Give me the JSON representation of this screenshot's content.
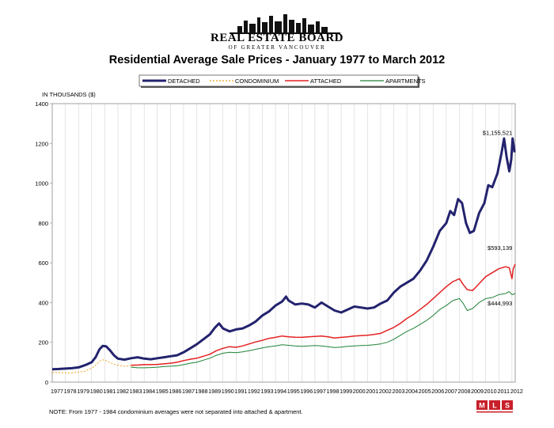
{
  "header": {
    "logo_title": "REAL ESTATE BOARD",
    "logo_subtitle": "OF GREATER VANCOUVER",
    "title": "Residential Average Sale Prices  -  January 1977 to March 2012"
  },
  "footer": {
    "note": "NOTE:  From 1977 - 1984 condominium averages were not separated into attached & apartment.",
    "badge_icon": "mls-logo-icon"
  },
  "chart_data": {
    "type": "line",
    "ylabel": "IN THOUSANDS ($)",
    "ylim": [
      0,
      1400
    ],
    "yticks": [
      0,
      200,
      400,
      600,
      800,
      1000,
      1200,
      1400
    ],
    "xlim": [
      1977,
      2012.25
    ],
    "xticks": [
      "1977",
      "1978",
      "1979",
      "1980",
      "1981",
      "1982",
      "1983",
      "1984",
      "1985",
      "1986",
      "1987",
      "1988",
      "1989",
      "1990",
      "1991",
      "1992",
      "1993",
      "1994",
      "1995",
      "1996",
      "1997",
      "1998",
      "1999",
      "2000",
      "2001",
      "2002",
      "2003",
      "2004",
      "2005",
      "2006",
      "2007",
      "2008",
      "2009",
      "2010",
      "2011",
      "2012"
    ],
    "grid": "vertical",
    "legend": "top",
    "series": [
      {
        "name": "DETACHED",
        "color": "#23236e",
        "width": 3,
        "dash": "",
        "points": [
          [
            1977,
            65
          ],
          [
            1977.5,
            66
          ],
          [
            1978,
            68
          ],
          [
            1978.5,
            70
          ],
          [
            1979,
            74
          ],
          [
            1979.5,
            85
          ],
          [
            1980,
            100
          ],
          [
            1980.3,
            125
          ],
          [
            1980.6,
            165
          ],
          [
            1980.85,
            182
          ],
          [
            1981.1,
            180
          ],
          [
            1981.4,
            160
          ],
          [
            1981.7,
            135
          ],
          [
            1982,
            118
          ],
          [
            1982.5,
            113
          ],
          [
            1983,
            120
          ],
          [
            1983.5,
            125
          ],
          [
            1984,
            118
          ],
          [
            1984.5,
            115
          ],
          [
            1985,
            120
          ],
          [
            1985.5,
            125
          ],
          [
            1986,
            130
          ],
          [
            1986.5,
            135
          ],
          [
            1987,
            150
          ],
          [
            1987.5,
            170
          ],
          [
            1988,
            190
          ],
          [
            1988.5,
            215
          ],
          [
            1989,
            240
          ],
          [
            1989.4,
            275
          ],
          [
            1989.7,
            295
          ],
          [
            1990,
            270
          ],
          [
            1990.5,
            255
          ],
          [
            1991,
            265
          ],
          [
            1991.5,
            270
          ],
          [
            1992,
            285
          ],
          [
            1992.5,
            305
          ],
          [
            1993,
            335
          ],
          [
            1993.5,
            355
          ],
          [
            1994,
            385
          ],
          [
            1994.5,
            405
          ],
          [
            1994.8,
            430
          ],
          [
            1995,
            410
          ],
          [
            1995.5,
            390
          ],
          [
            1996,
            395
          ],
          [
            1996.5,
            390
          ],
          [
            1997,
            375
          ],
          [
            1997.5,
            400
          ],
          [
            1998,
            380
          ],
          [
            1998.5,
            360
          ],
          [
            1999,
            350
          ],
          [
            1999.5,
            365
          ],
          [
            2000,
            380
          ],
          [
            2000.5,
            375
          ],
          [
            2001,
            370
          ],
          [
            2001.5,
            375
          ],
          [
            2002,
            395
          ],
          [
            2002.5,
            410
          ],
          [
            2003,
            450
          ],
          [
            2003.5,
            480
          ],
          [
            2004,
            500
          ],
          [
            2004.5,
            520
          ],
          [
            2005,
            560
          ],
          [
            2005.5,
            610
          ],
          [
            2006,
            680
          ],
          [
            2006.5,
            760
          ],
          [
            2007,
            800
          ],
          [
            2007.3,
            860
          ],
          [
            2007.6,
            840
          ],
          [
            2007.9,
            920
          ],
          [
            2008.2,
            900
          ],
          [
            2008.5,
            800
          ],
          [
            2008.8,
            750
          ],
          [
            2009.1,
            760
          ],
          [
            2009.5,
            850
          ],
          [
            2009.9,
            900
          ],
          [
            2010.2,
            990
          ],
          [
            2010.5,
            980
          ],
          [
            2010.9,
            1050
          ],
          [
            2011.2,
            1150
          ],
          [
            2011.4,
            1225
          ],
          [
            2011.6,
            1130
          ],
          [
            2011.8,
            1060
          ],
          [
            2011.95,
            1120
          ],
          [
            2012.05,
            1225
          ],
          [
            2012.2,
            1155
          ]
        ]
      },
      {
        "name": "CONDOMINIUM",
        "color": "#f0a21e",
        "width": 1,
        "dash": "2,2",
        "points": [
          [
            1977,
            48
          ],
          [
            1977.5,
            48
          ],
          [
            1978,
            47
          ],
          [
            1978.5,
            47
          ],
          [
            1979,
            50
          ],
          [
            1979.5,
            55
          ],
          [
            1980,
            70
          ],
          [
            1980.3,
            85
          ],
          [
            1980.6,
            105
          ],
          [
            1980.85,
            112
          ],
          [
            1981.1,
            108
          ],
          [
            1981.4,
            98
          ],
          [
            1981.7,
            90
          ],
          [
            1982,
            85
          ],
          [
            1982.5,
            80
          ],
          [
            1983,
            82
          ],
          [
            1983.5,
            85
          ],
          [
            1984,
            88
          ]
        ]
      },
      {
        "name": "ATTACHED",
        "color": "#e32222",
        "width": 1.5,
        "dash": "",
        "points": [
          [
            1983,
            85
          ],
          [
            1983.5,
            86
          ],
          [
            1984,
            88
          ],
          [
            1984.5,
            88
          ],
          [
            1985,
            89
          ],
          [
            1985.5,
            92
          ],
          [
            1986,
            95
          ],
          [
            1986.5,
            100
          ],
          [
            1987,
            108
          ],
          [
            1987.5,
            115
          ],
          [
            1988,
            120
          ],
          [
            1988.5,
            130
          ],
          [
            1989,
            140
          ],
          [
            1989.5,
            158
          ],
          [
            1990,
            170
          ],
          [
            1990.5,
            178
          ],
          [
            1991,
            175
          ],
          [
            1991.5,
            182
          ],
          [
            1992,
            192
          ],
          [
            1992.5,
            202
          ],
          [
            1993,
            210
          ],
          [
            1993.5,
            220
          ],
          [
            1994,
            225
          ],
          [
            1994.5,
            232
          ],
          [
            1995,
            228
          ],
          [
            1995.5,
            226
          ],
          [
            1996,
            225
          ],
          [
            1996.5,
            228
          ],
          [
            1997,
            230
          ],
          [
            1997.5,
            232
          ],
          [
            1998,
            228
          ],
          [
            1998.5,
            222
          ],
          [
            1999,
            225
          ],
          [
            1999.5,
            228
          ],
          [
            2000,
            232
          ],
          [
            2000.5,
            234
          ],
          [
            2001,
            236
          ],
          [
            2001.5,
            240
          ],
          [
            2002,
            245
          ],
          [
            2002.5,
            260
          ],
          [
            2003,
            275
          ],
          [
            2003.5,
            295
          ],
          [
            2004,
            320
          ],
          [
            2004.5,
            340
          ],
          [
            2005,
            365
          ],
          [
            2005.5,
            390
          ],
          [
            2006,
            420
          ],
          [
            2006.5,
            450
          ],
          [
            2007,
            480
          ],
          [
            2007.5,
            505
          ],
          [
            2008,
            520
          ],
          [
            2008.3,
            490
          ],
          [
            2008.6,
            465
          ],
          [
            2009,
            460
          ],
          [
            2009.5,
            495
          ],
          [
            2010,
            530
          ],
          [
            2010.5,
            550
          ],
          [
            2011,
            570
          ],
          [
            2011.5,
            580
          ],
          [
            2011.8,
            575
          ],
          [
            2012,
            520
          ],
          [
            2012.1,
            570
          ],
          [
            2012.25,
            593
          ]
        ]
      },
      {
        "name": "APARTMENTS",
        "color": "#1e8236",
        "width": 1,
        "dash": "",
        "points": [
          [
            1983,
            75
          ],
          [
            1983.5,
            72
          ],
          [
            1984,
            72
          ],
          [
            1984.5,
            73
          ],
          [
            1985,
            75
          ],
          [
            1985.5,
            78
          ],
          [
            1986,
            80
          ],
          [
            1986.5,
            82
          ],
          [
            1987,
            88
          ],
          [
            1987.5,
            95
          ],
          [
            1988,
            100
          ],
          [
            1988.5,
            110
          ],
          [
            1989,
            120
          ],
          [
            1989.5,
            135
          ],
          [
            1990,
            145
          ],
          [
            1990.5,
            150
          ],
          [
            1991,
            148
          ],
          [
            1991.5,
            152
          ],
          [
            1992,
            158
          ],
          [
            1992.5,
            165
          ],
          [
            1993,
            172
          ],
          [
            1993.5,
            178
          ],
          [
            1994,
            182
          ],
          [
            1994.5,
            188
          ],
          [
            1995,
            185
          ],
          [
            1995.5,
            182
          ],
          [
            1996,
            180
          ],
          [
            1996.5,
            182
          ],
          [
            1997,
            184
          ],
          [
            1997.5,
            182
          ],
          [
            1998,
            178
          ],
          [
            1998.5,
            174
          ],
          [
            1999,
            176
          ],
          [
            1999.5,
            180
          ],
          [
            2000,
            182
          ],
          [
            2000.5,
            184
          ],
          [
            2001,
            185
          ],
          [
            2001.5,
            188
          ],
          [
            2002,
            192
          ],
          [
            2002.5,
            200
          ],
          [
            2003,
            215
          ],
          [
            2003.5,
            235
          ],
          [
            2004,
            255
          ],
          [
            2004.5,
            270
          ],
          [
            2005,
            290
          ],
          [
            2005.5,
            310
          ],
          [
            2006,
            335
          ],
          [
            2006.5,
            365
          ],
          [
            2007,
            385
          ],
          [
            2007.5,
            410
          ],
          [
            2008,
            420
          ],
          [
            2008.3,
            395
          ],
          [
            2008.6,
            360
          ],
          [
            2009,
            370
          ],
          [
            2009.5,
            400
          ],
          [
            2010,
            420
          ],
          [
            2010.5,
            425
          ],
          [
            2011,
            440
          ],
          [
            2011.5,
            445
          ],
          [
            2011.8,
            455
          ],
          [
            2012,
            440
          ],
          [
            2012.25,
            445
          ]
        ]
      }
    ],
    "annotations": [
      {
        "label": "$1,155,521",
        "x": 2012.15,
        "y": 1155
      },
      {
        "label": "$593,139",
        "x": 2012.15,
        "y": 593
      },
      {
        "label": "$444,993",
        "x": 2012.15,
        "y": 445
      }
    ]
  }
}
